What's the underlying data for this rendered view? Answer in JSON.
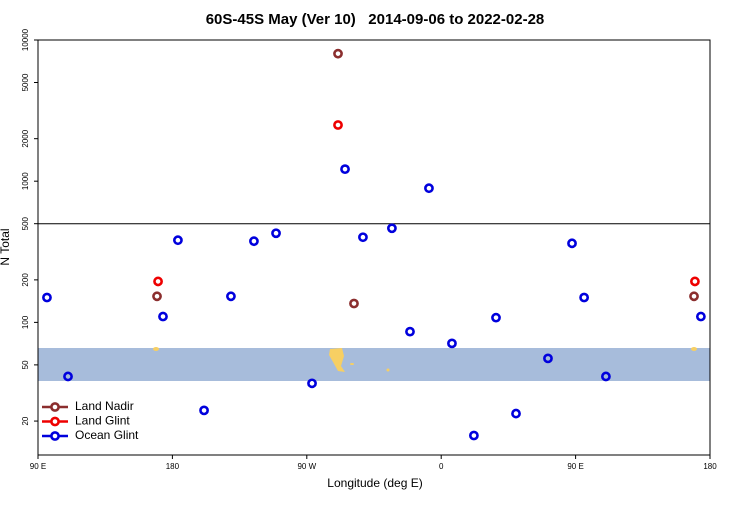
{
  "chart_data": {
    "type": "scatter",
    "title": "60S-45S May (Ver 10)   2014-09-06 to 2022-02-28",
    "xlabel": "Longitude (deg E)",
    "ylabel": "N Total",
    "xlim": [
      90,
      540
    ],
    "xticks": [
      {
        "value": 90,
        "label": "90 E"
      },
      {
        "value": 180,
        "label": "180"
      },
      {
        "value": 270,
        "label": "90 W"
      },
      {
        "value": 360,
        "label": "0"
      },
      {
        "value": 450,
        "label": "90 E"
      },
      {
        "value": 540,
        "label": "180"
      }
    ],
    "ylim": [
      11.5,
      10000
    ],
    "ylog": true,
    "yticks": [
      20,
      50,
      100,
      200,
      500,
      1000,
      2000,
      5000,
      10000
    ],
    "reference_line": 500,
    "legend": "lower left",
    "series": [
      {
        "name": "Land Nadir",
        "color": "#8b2e2e",
        "x": [
          290.9,
          169.7,
          301.6,
          529.3
        ],
        "values": [
          8000,
          153,
          136,
          153
        ]
      },
      {
        "name": "Land Glint",
        "color": "#ee0000",
        "x": [
          290.9,
          170.4,
          529.9
        ],
        "values": [
          2500,
          195,
          195
        ]
      },
      {
        "name": "Ocean Glint",
        "color": "#0000dd",
        "x": [
          96,
          110.1,
          173.7,
          183.7,
          201.2,
          219.2,
          234.6,
          249.4,
          273.5,
          295.6,
          307.6,
          327,
          339.1,
          351.8,
          367.2,
          381.9,
          396.7,
          410.1,
          431.5,
          447.6,
          455.7,
          470.3,
          533.9
        ],
        "values": [
          150,
          41.4,
          110,
          382,
          23.8,
          153,
          376,
          428,
          37,
          1217,
          401,
          464,
          86,
          892,
          71,
          15.8,
          108,
          22.6,
          55.6,
          363,
          150,
          41.4,
          110
        ]
      }
    ]
  }
}
